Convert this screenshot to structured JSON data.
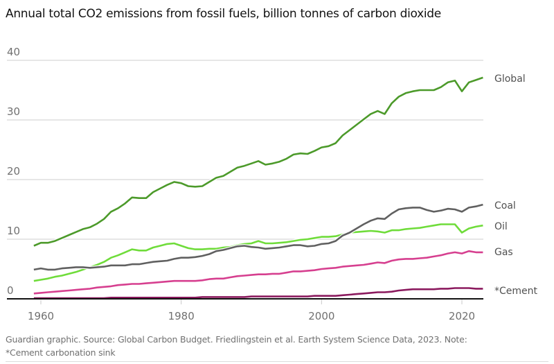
{
  "chart_data": {
    "type": "line",
    "title": "Annual total CO2 emissions from fossil fuels, billion tonnes of carbon dioxide",
    "xlabel": "",
    "ylabel": "",
    "xlim": [
      1959,
      2023
    ],
    "ylim": [
      0,
      40
    ],
    "x_ticks": [
      1960,
      1980,
      2000,
      2020
    ],
    "y_ticks": [
      0,
      10,
      20,
      30,
      40
    ],
    "grid": true,
    "legend": "direct-labels-right",
    "x": [
      1959,
      1960,
      1961,
      1962,
      1963,
      1964,
      1965,
      1966,
      1967,
      1968,
      1969,
      1970,
      1971,
      1972,
      1973,
      1974,
      1975,
      1976,
      1977,
      1978,
      1979,
      1980,
      1981,
      1982,
      1983,
      1984,
      1985,
      1986,
      1987,
      1988,
      1989,
      1990,
      1991,
      1992,
      1993,
      1994,
      1995,
      1996,
      1997,
      1998,
      1999,
      2000,
      2001,
      2002,
      2003,
      2004,
      2005,
      2006,
      2007,
      2008,
      2009,
      2010,
      2011,
      2012,
      2013,
      2014,
      2015,
      2016,
      2017,
      2018,
      2019,
      2020,
      2021,
      2022,
      2023
    ],
    "series": [
      {
        "name": "Global",
        "color": "#4c9a2a",
        "values": [
          8.9,
          9.4,
          9.4,
          9.7,
          10.2,
          10.7,
          11.2,
          11.7,
          12.0,
          12.6,
          13.4,
          14.6,
          15.2,
          16.0,
          17.0,
          16.9,
          16.9,
          17.9,
          18.5,
          19.1,
          19.6,
          19.4,
          18.9,
          18.8,
          18.9,
          19.6,
          20.3,
          20.6,
          21.3,
          22.0,
          22.3,
          22.7,
          23.1,
          22.5,
          22.7,
          23.0,
          23.5,
          24.2,
          24.4,
          24.3,
          24.8,
          25.4,
          25.6,
          26.1,
          27.4,
          28.3,
          29.2,
          30.1,
          31.0,
          31.5,
          31.0,
          32.8,
          33.9,
          34.5,
          34.8,
          35.0,
          35.0,
          35.0,
          35.5,
          36.3,
          36.6,
          34.8,
          36.3,
          36.7,
          37.1
        ]
      },
      {
        "name": "Coal",
        "color": "#606060",
        "values": [
          4.9,
          5.1,
          4.9,
          4.9,
          5.1,
          5.2,
          5.3,
          5.3,
          5.2,
          5.3,
          5.4,
          5.6,
          5.6,
          5.6,
          5.8,
          5.8,
          6.0,
          6.2,
          6.3,
          6.4,
          6.7,
          6.9,
          6.9,
          7.0,
          7.2,
          7.5,
          8.0,
          8.2,
          8.5,
          8.8,
          8.9,
          8.7,
          8.6,
          8.4,
          8.5,
          8.6,
          8.8,
          9.0,
          9.0,
          8.8,
          8.9,
          9.2,
          9.3,
          9.7,
          10.6,
          11.1,
          11.8,
          12.5,
          13.1,
          13.5,
          13.4,
          14.3,
          15.0,
          15.2,
          15.3,
          15.3,
          14.9,
          14.6,
          14.8,
          15.1,
          15.0,
          14.6,
          15.3,
          15.5,
          15.8
        ]
      },
      {
        "name": "Oil",
        "color": "#6fdc3a",
        "values": [
          3.0,
          3.2,
          3.4,
          3.7,
          3.9,
          4.2,
          4.5,
          4.9,
          5.3,
          5.7,
          6.2,
          6.9,
          7.3,
          7.8,
          8.3,
          8.1,
          8.1,
          8.6,
          8.9,
          9.2,
          9.3,
          8.9,
          8.5,
          8.3,
          8.3,
          8.4,
          8.4,
          8.6,
          8.7,
          9.0,
          9.2,
          9.3,
          9.7,
          9.3,
          9.3,
          9.4,
          9.5,
          9.7,
          9.9,
          10.0,
          10.2,
          10.4,
          10.4,
          10.5,
          10.8,
          11.1,
          11.2,
          11.3,
          11.4,
          11.3,
          11.1,
          11.5,
          11.5,
          11.7,
          11.8,
          11.9,
          12.1,
          12.3,
          12.5,
          12.5,
          12.5,
          11.1,
          11.8,
          12.1,
          12.3
        ]
      },
      {
        "name": "Gas",
        "color": "#d63f8f",
        "values": [
          0.9,
          1.0,
          1.1,
          1.2,
          1.3,
          1.4,
          1.5,
          1.6,
          1.7,
          1.9,
          2.0,
          2.1,
          2.3,
          2.4,
          2.5,
          2.5,
          2.6,
          2.7,
          2.8,
          2.9,
          3.0,
          3.0,
          3.0,
          3.0,
          3.1,
          3.3,
          3.4,
          3.4,
          3.6,
          3.8,
          3.9,
          4.0,
          4.1,
          4.1,
          4.2,
          4.2,
          4.4,
          4.6,
          4.6,
          4.7,
          4.8,
          5.0,
          5.1,
          5.2,
          5.4,
          5.5,
          5.6,
          5.7,
          5.9,
          6.1,
          6.0,
          6.4,
          6.6,
          6.7,
          6.7,
          6.8,
          6.9,
          7.1,
          7.3,
          7.6,
          7.8,
          7.6,
          8.0,
          7.8,
          7.8
        ]
      },
      {
        "name": "*Cement",
        "color": "#8b1a5e",
        "values": [
          0.1,
          0.1,
          0.1,
          0.1,
          0.1,
          0.1,
          0.1,
          0.1,
          0.1,
          0.1,
          0.1,
          0.2,
          0.2,
          0.2,
          0.2,
          0.2,
          0.2,
          0.2,
          0.2,
          0.2,
          0.2,
          0.2,
          0.2,
          0.2,
          0.3,
          0.3,
          0.3,
          0.3,
          0.3,
          0.3,
          0.3,
          0.4,
          0.4,
          0.4,
          0.4,
          0.4,
          0.4,
          0.4,
          0.4,
          0.4,
          0.5,
          0.5,
          0.5,
          0.5,
          0.6,
          0.7,
          0.8,
          0.9,
          1.0,
          1.1,
          1.1,
          1.2,
          1.4,
          1.5,
          1.6,
          1.6,
          1.6,
          1.6,
          1.7,
          1.7,
          1.8,
          1.8,
          1.8,
          1.7,
          1.7
        ]
      }
    ],
    "axis_color": "#121212",
    "grid_color": "#cccccc"
  },
  "footer": {
    "line1": "Guardian graphic. Source: Global Carbon Budget. Friedlingstein et al. Earth System Science Data, 2023. Note:",
    "line2": "*Cement carbonation sink"
  }
}
